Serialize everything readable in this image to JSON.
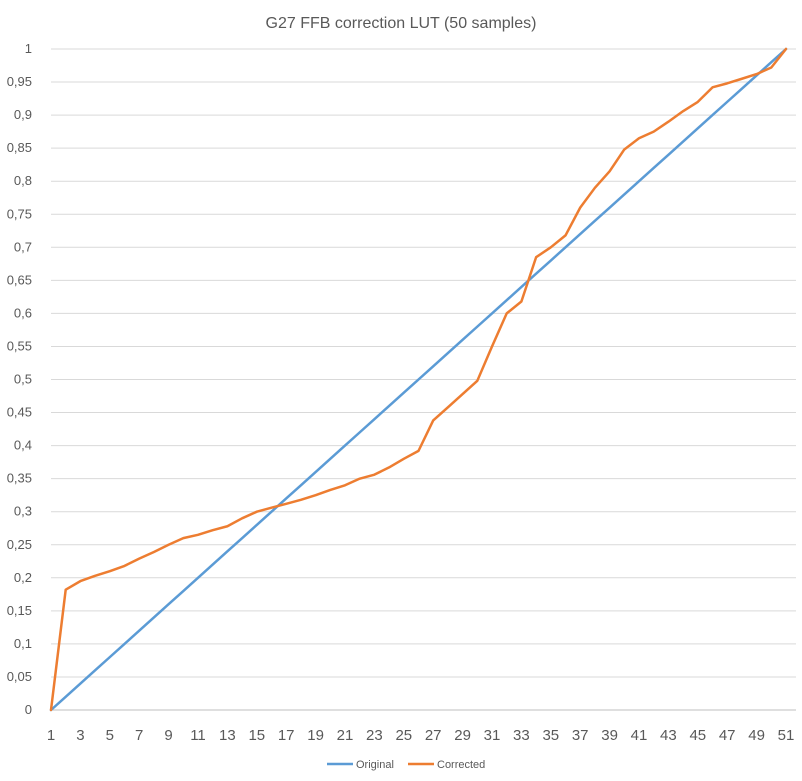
{
  "chart_data": {
    "type": "line",
    "title": "G27 FFB correction LUT (50 samples)",
    "xlabel": "",
    "ylabel": "",
    "x": [
      1,
      2,
      3,
      4,
      5,
      6,
      7,
      8,
      9,
      10,
      11,
      12,
      13,
      14,
      15,
      16,
      17,
      18,
      19,
      20,
      21,
      22,
      23,
      24,
      25,
      26,
      27,
      28,
      29,
      30,
      31,
      32,
      33,
      34,
      35,
      36,
      37,
      38,
      39,
      40,
      41,
      42,
      43,
      44,
      45,
      46,
      47,
      48,
      49,
      50,
      51
    ],
    "x_tick_labels": [
      "1",
      "3",
      "5",
      "7",
      "9",
      "11",
      "13",
      "15",
      "17",
      "19",
      "21",
      "23",
      "25",
      "27",
      "29",
      "31",
      "33",
      "35",
      "37",
      "39",
      "41",
      "43",
      "45",
      "47",
      "49",
      "51"
    ],
    "x_tick_values": [
      1,
      3,
      5,
      7,
      9,
      11,
      13,
      15,
      17,
      19,
      21,
      23,
      25,
      27,
      29,
      31,
      33,
      35,
      37,
      39,
      41,
      43,
      45,
      47,
      49,
      51
    ],
    "y_tick_labels": [
      "0",
      "0,05",
      "0,1",
      "0,15",
      "0,2",
      "0,25",
      "0,3",
      "0,35",
      "0,4",
      "0,45",
      "0,5",
      "0,55",
      "0,6",
      "0,65",
      "0,7",
      "0,75",
      "0,8",
      "0,85",
      "0,9",
      "0,95",
      "1"
    ],
    "ylim": [
      0,
      1
    ],
    "xlim": [
      1,
      51
    ],
    "grid": "horizontal",
    "legend_position": "bottom",
    "series": [
      {
        "name": "Original",
        "color": "#5b9bd5",
        "values": [
          0,
          0.02,
          0.04,
          0.06,
          0.08,
          0.1,
          0.12,
          0.14,
          0.16,
          0.18,
          0.2,
          0.22,
          0.24,
          0.26,
          0.28,
          0.3,
          0.32,
          0.34,
          0.36,
          0.38,
          0.4,
          0.42,
          0.44,
          0.46,
          0.48,
          0.5,
          0.52,
          0.54,
          0.56,
          0.58,
          0.6,
          0.62,
          0.64,
          0.66,
          0.68,
          0.7,
          0.72,
          0.74,
          0.76,
          0.78,
          0.8,
          0.82,
          0.84,
          0.86,
          0.88,
          0.9,
          0.92,
          0.94,
          0.96,
          0.98,
          1.0
        ]
      },
      {
        "name": "Corrected",
        "color": "#ed7d31",
        "values": [
          0,
          0.182,
          0.195,
          0.203,
          0.21,
          0.218,
          0.229,
          0.239,
          0.25,
          0.26,
          0.265,
          0.272,
          0.278,
          0.29,
          0.3,
          0.306,
          0.312,
          0.318,
          0.325,
          0.333,
          0.34,
          0.35,
          0.356,
          0.367,
          0.38,
          0.392,
          0.438,
          0.458,
          0.478,
          0.498,
          0.55,
          0.6,
          0.618,
          0.685,
          0.7,
          0.718,
          0.76,
          0.79,
          0.815,
          0.848,
          0.865,
          0.875,
          0.89,
          0.906,
          0.92,
          0.942,
          0.948,
          0.955,
          0.962,
          0.972,
          1.0
        ]
      }
    ]
  }
}
